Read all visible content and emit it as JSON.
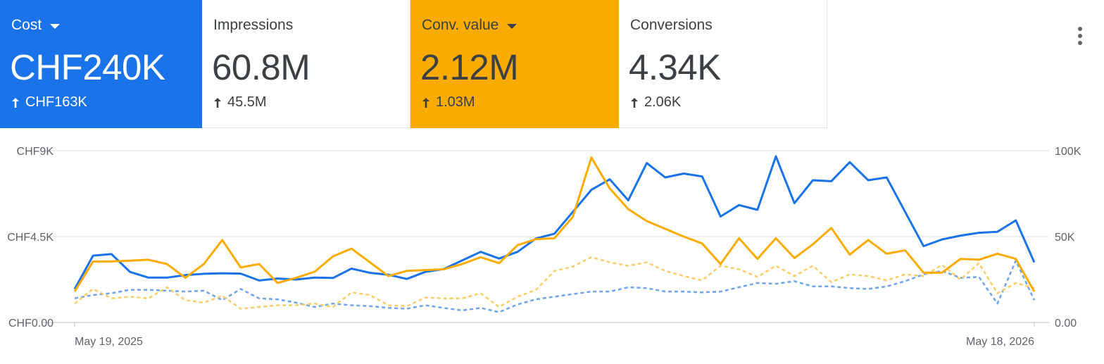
{
  "cards": [
    {
      "label": "Cost",
      "value": "CHF240K",
      "delta": "CHF163K",
      "dropdown": true
    },
    {
      "label": "Impressions",
      "value": "60.8M",
      "delta": "45.5M",
      "dropdown": false
    },
    {
      "label": "Conv. value",
      "value": "2.12M",
      "delta": "1.03M",
      "dropdown": true
    },
    {
      "label": "Conversions",
      "value": "4.34K",
      "delta": "2.06K",
      "dropdown": false
    }
  ],
  "colors": {
    "cost": "#1a73e8",
    "conv_value": "#f9ab00"
  },
  "chart_data": {
    "type": "line",
    "x_labels": [
      "May 19, 2025",
      "May 18, 2026"
    ],
    "x_range": [
      "2025-05-19",
      "2026-05-18"
    ],
    "y_left": {
      "ticks": [
        "CHF0.00",
        "CHF4.5K",
        "CHF9K"
      ],
      "range": [
        0,
        9000
      ]
    },
    "y_right": {
      "ticks": [
        "0.00",
        "50K",
        "100K"
      ],
      "range": [
        0,
        100000
      ]
    },
    "grid": true,
    "series": [
      {
        "name": "Cost",
        "axis": "left",
        "style": "solid",
        "color": "#1a73e8",
        "values": [
          1750,
          3500,
          3580,
          2650,
          2350,
          2350,
          2480,
          2550,
          2580,
          2560,
          2200,
          2300,
          2250,
          2350,
          2330,
          2820,
          2600,
          2500,
          2280,
          2650,
          2800,
          3250,
          3700,
          3350,
          3700,
          4400,
          4650,
          5800,
          6950,
          7500,
          6400,
          8350,
          7600,
          7800,
          7650,
          5550,
          6150,
          5900,
          8700,
          6250,
          7450,
          7400,
          8400,
          7450,
          7600,
          5800,
          4000,
          4350,
          4550,
          4700,
          4750,
          5350,
          3150
        ]
      },
      {
        "name": "Conv. value",
        "axis": "right",
        "style": "solid",
        "color": "#f9ab00",
        "values": [
          18000,
          35500,
          35500,
          36000,
          36500,
          34000,
          26000,
          34000,
          48000,
          32000,
          34000,
          23000,
          26000,
          29500,
          38500,
          43000,
          35000,
          27000,
          30000,
          30500,
          31000,
          34000,
          38000,
          34500,
          45000,
          48500,
          49000,
          61500,
          96000,
          78000,
          66000,
          59000,
          54500,
          50000,
          46000,
          34000,
          49000,
          37000,
          49000,
          37500,
          45500,
          55000,
          39500,
          48000,
          40000,
          42000,
          29000,
          29000,
          37000,
          36500,
          40000,
          37000,
          18000
        ]
      },
      {
        "name": "Impressions",
        "axis": "right",
        "style": "dashed",
        "color": "#6fa3ea",
        "values": [
          14000,
          16000,
          17000,
          19000,
          19000,
          18500,
          18000,
          18500,
          13000,
          19500,
          14000,
          13500,
          11500,
          9000,
          11000,
          10000,
          9500,
          8500,
          8000,
          10000,
          8500,
          7000,
          8500,
          6000,
          10500,
          13500,
          15000,
          16500,
          18000,
          18000,
          20500,
          20000,
          18000,
          18000,
          17500,
          18000,
          20500,
          23000,
          22500,
          24000,
          21000,
          21000,
          20000,
          19500,
          21000,
          24000,
          28000,
          30000,
          26000,
          26500,
          11000,
          36000,
          13000
        ]
      },
      {
        "name": "Conversions",
        "axis": "right",
        "style": "dashed",
        "color": "#f7cd68",
        "values": [
          11000,
          19500,
          14000,
          15000,
          14000,
          20500,
          13000,
          11500,
          15500,
          8000,
          9000,
          10000,
          10000,
          11000,
          9000,
          17500,
          16000,
          10000,
          9500,
          14500,
          14000,
          14000,
          17000,
          9000,
          15000,
          19000,
          30000,
          32500,
          38000,
          35000,
          33000,
          35000,
          30000,
          27000,
          24500,
          33000,
          31000,
          26500,
          33000,
          27000,
          33000,
          23500,
          28000,
          27000,
          24500,
          28000,
          27000,
          33500,
          25000,
          34500,
          17000,
          23000,
          20000
        ]
      }
    ]
  }
}
